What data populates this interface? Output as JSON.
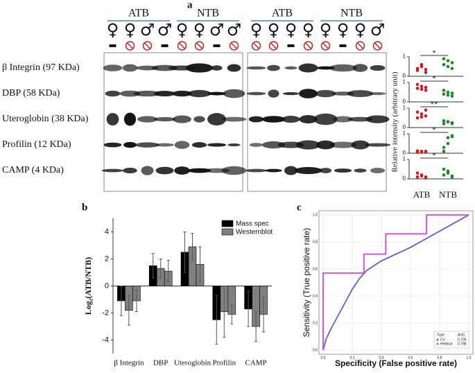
{
  "figure": {
    "panel_labels": [
      "a",
      "b",
      "c"
    ],
    "blots": [
      {
        "groups": [
          "ATB",
          "NTB"
        ],
        "sexes": [
          "♀",
          "♀",
          "♂",
          "♂",
          "♀",
          "♀",
          "♂",
          "♂"
        ]
      },
      {
        "groups": [
          "ATB",
          "NTB"
        ],
        "sexes": [
          "♀",
          "♀",
          "♀",
          "♀",
          "♀",
          "♀",
          "♀",
          "♂"
        ]
      }
    ],
    "proteins": [
      "β Integrin (97 KDa)",
      "DBP (58 KDa)",
      "Uteroglobin (38 KDa)",
      "Profilin (12 KDa)",
      "CAMP (4 KDa)"
    ]
  },
  "chart_data": [
    {
      "type": "dotplot",
      "y_label": "Relative intensity (arbitrary unit)",
      "categories": [
        "ATB",
        "NTB"
      ],
      "ylim": [
        0,
        1
      ],
      "yticks": [
        0,
        1
      ],
      "panels": [
        {
          "annotation": "*",
          "series": [
            {
              "name": "ATB",
              "color": "#d7191c",
              "values": [
                0.3,
                0.5,
                0.2,
                0.4,
                0.6,
                0.35
              ]
            },
            {
              "name": "NTB",
              "color": "#1a8a2a",
              "values": [
                0.6,
                0.8,
                0.4,
                0.9,
                0.5,
                0.7
              ]
            }
          ]
        },
        {
          "annotation": "*",
          "series": [
            {
              "name": "ATB",
              "color": "#d7191c",
              "values": [
                0.7,
                0.8,
                0.6,
                0.9,
                0.65,
                0.75
              ]
            },
            {
              "name": "NTB",
              "color": "#1a8a2a",
              "values": [
                0.4,
                0.5,
                0.3,
                0.6,
                0.35,
                0.45
              ]
            }
          ]
        },
        {
          "annotation": "**",
          "series": [
            {
              "name": "ATB",
              "color": "#d7191c",
              "values": [
                0.5,
                0.7,
                0.6,
                0.8,
                0.55,
                0.9
              ]
            },
            {
              "name": "NTB",
              "color": "#1a8a2a",
              "values": [
                0.2,
                0.3,
                0.25,
                0.35,
                0.3,
                0.2
              ]
            }
          ]
        },
        {
          "annotation": "*",
          "series": [
            {
              "name": "ATB",
              "color": "#d7191c",
              "values": [
                0.05,
                0.1,
                0.08,
                0.12,
                0.06,
                0.1
              ]
            },
            {
              "name": "NTB",
              "color": "#1a8a2a",
              "values": [
                0.3,
                0.8,
                0.9,
                0.1,
                0.5,
                0.85
              ]
            }
          ]
        },
        {
          "annotation": "*",
          "series": [
            {
              "name": "ATB",
              "color": "#d7191c",
              "values": [
                0.1,
                0.2,
                0.05,
                0.3,
                0.15,
                0.1
              ]
            },
            {
              "name": "NTB",
              "color": "#1a8a2a",
              "values": [
                0.2,
                0.4,
                0.1,
                0.5,
                0.3,
                0.15
              ]
            }
          ]
        }
      ]
    },
    {
      "type": "bar",
      "y_label": "Log₂(ATB/NTB)",
      "categories": [
        "β Integrin",
        "DBP",
        "Uteroglobin",
        "Profilin",
        "CAMP"
      ],
      "ylim": [
        -5,
        5
      ],
      "yticks": [
        -4,
        -2,
        0,
        2,
        4
      ],
      "series": [
        {
          "name": "Mass spec",
          "color": "#000000",
          "values": [
            [
              -1.1
            ],
            [
              1.5
            ],
            [
              2.5
            ],
            [
              -2.5
            ],
            [
              -1.7
            ]
          ],
          "errors": [
            [
              1.1
            ],
            [
              0.9
            ],
            [
              1.5
            ],
            [
              1.8
            ],
            [
              1.3
            ]
          ]
        },
        {
          "name": "Westernblot",
          "color": "#808080",
          "values": [
            [
              -1.8,
              -1.1
            ],
            [
              1.3,
              1.1
            ],
            [
              2.9,
              1.6
            ],
            [
              -1.9,
              -2.1
            ],
            [
              -3.0,
              -2.1
            ]
          ],
          "errors": [
            [
              1.1,
              0.8
            ],
            [
              0.7,
              0.8
            ],
            [
              1.0,
              1.3
            ],
            [
              1.9,
              0.7
            ],
            [
              1.1,
              1.3
            ]
          ]
        }
      ]
    },
    {
      "type": "line",
      "x_label": "Specificity (False positive rate)",
      "y_label": "Sensitivity (True positive rate)",
      "xlim": [
        0,
        1
      ],
      "ylim": [
        0,
        1
      ],
      "xticks": [
        {
          "value": 0,
          "label": "0.0"
        },
        {
          "value": 0.2,
          "label": "0.2"
        },
        {
          "value": 0.4,
          "label": "0.4"
        },
        {
          "value": 0.6,
          "label": "0.6"
        },
        {
          "value": 0.8,
          "label": "0.8"
        },
        {
          "value": 1,
          "label": "1.0"
        }
      ],
      "yticks": [
        {
          "value": 0,
          "label": "0.0"
        },
        {
          "value": 0.2,
          "label": "0.2"
        },
        {
          "value": 0.4,
          "label": "0.4"
        },
        {
          "value": 0.6,
          "label": "0.6"
        },
        {
          "value": 0.8,
          "label": "0.8"
        },
        {
          "value": 1,
          "label": "1.0"
        }
      ],
      "legend_headers": [
        "Type",
        "AUC"
      ],
      "series": [
        {
          "name": "CV",
          "color": "#5b5bd6",
          "auc": 0.705,
          "x": [
            0,
            0.02,
            0.05,
            0.1,
            0.15,
            0.2,
            0.25,
            0.3,
            0.4,
            0.5,
            0.6,
            0.7,
            0.8,
            0.9,
            1
          ],
          "values": [
            0,
            0.08,
            0.15,
            0.25,
            0.35,
            0.45,
            0.53,
            0.59,
            0.66,
            0.71,
            0.76,
            0.82,
            0.88,
            0.94,
            1
          ]
        },
        {
          "name": "Heldout",
          "color": "#e040e0",
          "auc": 0.798,
          "x": [
            0,
            0,
            0.28,
            0.28,
            0.43,
            0.43,
            0.71,
            0.71,
            1
          ],
          "values": [
            0,
            0.57,
            0.57,
            0.71,
            0.71,
            0.86,
            0.86,
            1,
            1
          ]
        }
      ]
    }
  ]
}
